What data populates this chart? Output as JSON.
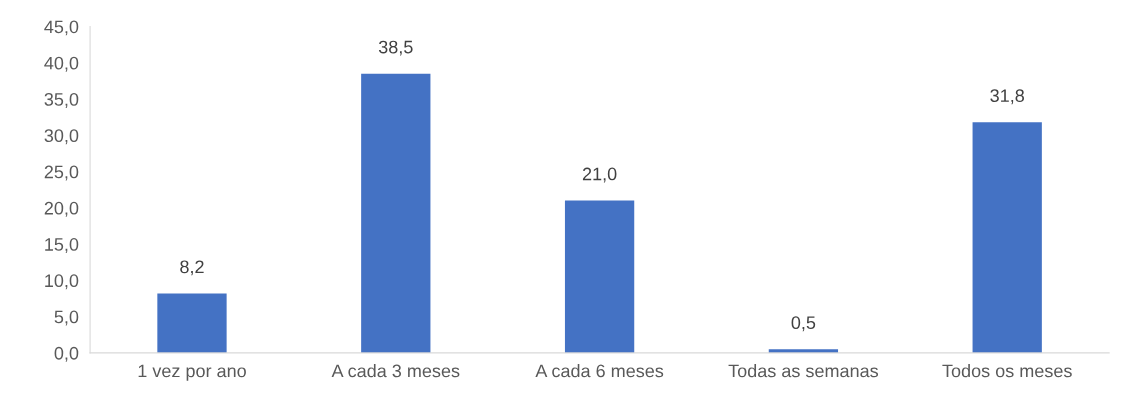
{
  "chart_data": {
    "type": "bar",
    "categories": [
      "1 vez por ano",
      "A cada 3 meses",
      "A cada 6 meses",
      "Todas as semanas",
      "Todos os meses"
    ],
    "values": [
      8.2,
      38.5,
      21.0,
      0.5,
      31.8
    ],
    "value_labels": [
      "8,2",
      "38,5",
      "21,0",
      "0,5",
      "31,8"
    ],
    "color": "#4472c4",
    "ylim": [
      0,
      45
    ],
    "yticks": [
      {
        "value": 0,
        "label": "0,0"
      },
      {
        "value": 5,
        "label": "5,0"
      },
      {
        "value": 10,
        "label": "10,0"
      },
      {
        "value": 15,
        "label": "15,0"
      },
      {
        "value": 20,
        "label": "20,0"
      },
      {
        "value": 25,
        "label": "25,0"
      },
      {
        "value": 30,
        "label": "30,0"
      },
      {
        "value": 35,
        "label": "35,0"
      },
      {
        "value": 40,
        "label": "40,0"
      },
      {
        "value": 45,
        "label": "45,0"
      }
    ],
    "grid": false,
    "legend": false
  }
}
